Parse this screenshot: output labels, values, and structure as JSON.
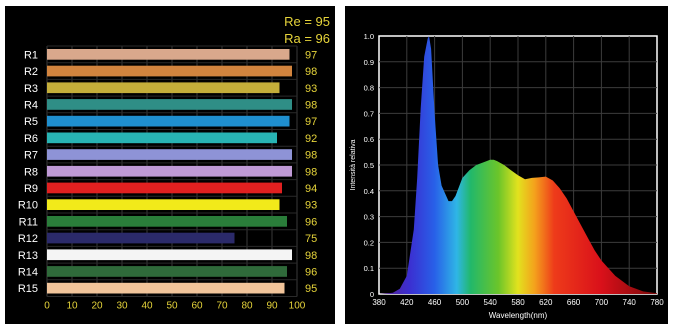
{
  "cri_chart": {
    "type": "bar",
    "re_label": "Re = 95",
    "ra_label": "Ra = 96",
    "categories": [
      "R1",
      "R2",
      "R3",
      "R4",
      "R5",
      "R6",
      "R7",
      "R8",
      "R9",
      "R10",
      "R11",
      "R12",
      "R13",
      "R14",
      "R15"
    ],
    "values": [
      97,
      98,
      93,
      98,
      97,
      92,
      98,
      98,
      94,
      93,
      96,
      75,
      98,
      96,
      95
    ],
    "bar_colors": [
      "#d9a88c",
      "#d2843e",
      "#c4ae3a",
      "#2f8e86",
      "#1f8fcf",
      "#28b4b4",
      "#8e93d6",
      "#c09ad6",
      "#e02020",
      "#f2ea1a",
      "#2a7d3a",
      "#2b2a6a",
      "#f4f4f4",
      "#2f6a3a",
      "#f1c49a"
    ],
    "x_ticks": [
      "0",
      "10",
      "20",
      "30",
      "40",
      "50",
      "60",
      "70",
      "80",
      "90",
      "100"
    ],
    "xlim": [
      0,
      100
    ],
    "grid": true,
    "label_color": "#e6d43a"
  },
  "spectrum_chart": {
    "type": "area",
    "xlabel": "Wavelength(nm)",
    "ylabel": "Intensità relativa",
    "xlim": [
      380,
      780
    ],
    "ylim": [
      0,
      1.0
    ],
    "x_ticks": [
      "380",
      "420",
      "460",
      "500",
      "540",
      "580",
      "620",
      "660",
      "700",
      "740",
      "780"
    ],
    "y_ticks": [
      "0",
      "0.1",
      "0.2",
      "0.3",
      "0.4",
      "0.5",
      "0.6",
      "0.7",
      "0.8",
      "0.9",
      "1.0"
    ],
    "grid": true,
    "x": [
      380,
      400,
      410,
      420,
      430,
      435,
      440,
      445,
      450,
      452,
      455,
      460,
      465,
      470,
      480,
      485,
      490,
      500,
      510,
      520,
      530,
      540,
      545,
      550,
      560,
      570,
      580,
      590,
      600,
      610,
      620,
      630,
      640,
      650,
      660,
      670,
      680,
      690,
      700,
      720,
      740,
      760,
      780
    ],
    "y": [
      0,
      0.005,
      0.02,
      0.07,
      0.25,
      0.45,
      0.72,
      0.92,
      0.99,
      1.0,
      0.95,
      0.7,
      0.5,
      0.42,
      0.36,
      0.36,
      0.38,
      0.45,
      0.48,
      0.5,
      0.51,
      0.52,
      0.52,
      0.515,
      0.5,
      0.48,
      0.46,
      0.445,
      0.45,
      0.452,
      0.455,
      0.44,
      0.41,
      0.37,
      0.32,
      0.27,
      0.22,
      0.17,
      0.13,
      0.07,
      0.03,
      0.01,
      0.003
    ]
  }
}
